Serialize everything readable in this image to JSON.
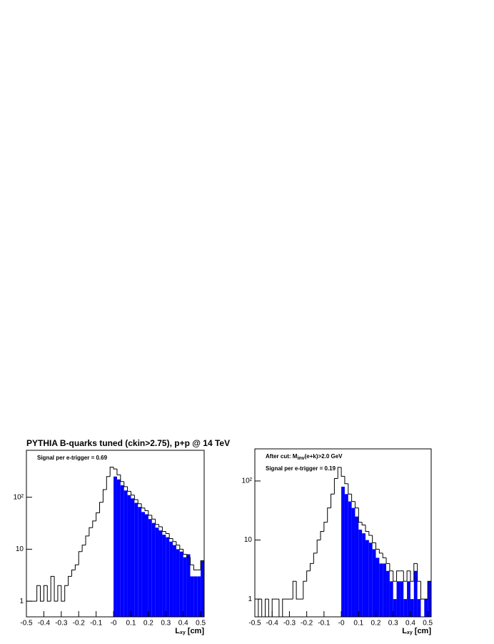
{
  "chart_data": [
    {
      "type": "histogram",
      "title": "PYTHIA B-quarks tuned (ckin>2.75), p+p @ 14 TeV",
      "annotations": [
        [
          "Signal per e-trigger = 0.69"
        ]
      ],
      "xlabel": [
        "L",
        "xy",
        " [cm]"
      ],
      "log_y": true,
      "xlim": [
        -0.5,
        0.52
      ],
      "ylim": [
        0.5,
        800
      ],
      "xticks": [
        -0.5,
        -0.4,
        -0.3,
        -0.2,
        -0.1,
        {
          "value": 0,
          "label": "-0"
        },
        0.1,
        0.2,
        0.3,
        0.4,
        0.5
      ],
      "yticks": [
        1,
        10,
        {
          "value": 100,
          "label": "10²"
        }
      ],
      "bins": [
        -0.5,
        -0.48,
        -0.46,
        -0.44,
        -0.42,
        -0.4,
        -0.38,
        -0.36,
        -0.34,
        -0.32,
        -0.3,
        -0.28,
        -0.26,
        -0.24,
        -0.22,
        -0.2,
        -0.18,
        -0.16,
        -0.14,
        -0.12,
        -0.1,
        -0.08,
        -0.06,
        -0.04,
        -0.02,
        0,
        0.02,
        0.04,
        0.06,
        0.08,
        0.1,
        0.12,
        0.14,
        0.16,
        0.18,
        0.2,
        0.22,
        0.24,
        0.26,
        0.28,
        0.3,
        0.32,
        0.34,
        0.36,
        0.38,
        0.4,
        0.42,
        0.44,
        0.46,
        0.48,
        0.5,
        0.52
      ],
      "series": [
        {
          "color": "#0000ff",
          "fill": true,
          "values": [
            0,
            0,
            0,
            0,
            0,
            0,
            0,
            0,
            0,
            0,
            0,
            0,
            0,
            0,
            0,
            0,
            0,
            0,
            0,
            0,
            0,
            0,
            0,
            0,
            0,
            250,
            220,
            170,
            135,
            110,
            95,
            78,
            65,
            52,
            47,
            38,
            32,
            26,
            23,
            19,
            17,
            14,
            12,
            10,
            9,
            7,
            8,
            3,
            3,
            3,
            6
          ]
        },
        {
          "color": "#000000",
          "fill": false,
          "values": [
            1,
            1,
            1,
            2,
            1,
            2,
            1,
            3,
            1,
            2,
            1,
            2,
            3,
            4,
            5,
            9,
            12,
            18,
            26,
            35,
            50,
            80,
            140,
            250,
            380,
            350,
            270,
            200,
            160,
            130,
            110,
            90,
            75,
            62,
            55,
            45,
            38,
            30,
            27,
            22,
            20,
            16,
            14,
            12,
            10,
            8,
            7,
            5,
            4,
            4,
            6
          ]
        }
      ]
    },
    {
      "type": "histogram",
      "annotations": [
        [
          "After cut: M",
          "inv",
          "(e+k)>2.0 GeV"
        ],
        [
          "Signal per e-trigger = 0.19"
        ]
      ],
      "xlabel": [
        "L",
        "xy",
        " [cm]"
      ],
      "log_y": true,
      "xlim": [
        -0.5,
        0.52
      ],
      "ylim": [
        0.5,
        350
      ],
      "xticks": [
        -0.5,
        -0.4,
        -0.3,
        -0.2,
        -0.1,
        {
          "value": 0,
          "label": "-0"
        },
        0.1,
        0.2,
        0.3,
        0.4,
        0.5
      ],
      "yticks": [
        1,
        10,
        {
          "value": 100,
          "label": "10²"
        }
      ],
      "bins": [
        -0.5,
        -0.48,
        -0.46,
        -0.44,
        -0.42,
        -0.4,
        -0.38,
        -0.36,
        -0.34,
        -0.32,
        -0.3,
        -0.28,
        -0.26,
        -0.24,
        -0.22,
        -0.2,
        -0.18,
        -0.16,
        -0.14,
        -0.12,
        -0.1,
        -0.08,
        -0.06,
        -0.04,
        -0.02,
        0,
        0.02,
        0.04,
        0.06,
        0.08,
        0.1,
        0.12,
        0.14,
        0.16,
        0.18,
        0.2,
        0.22,
        0.24,
        0.26,
        0.28,
        0.3,
        0.32,
        0.34,
        0.36,
        0.38,
        0.4,
        0.42,
        0.44,
        0.46,
        0.48,
        0.5,
        0.52
      ],
      "series": [
        {
          "color": "#0000ff",
          "fill": true,
          "values": [
            0,
            0,
            0,
            0,
            0,
            0,
            0,
            0,
            0,
            0,
            0,
            0,
            0,
            0,
            0,
            0,
            0,
            0,
            0,
            0,
            0,
            0,
            0,
            0,
            0,
            80,
            60,
            45,
            35,
            25,
            15,
            13,
            10,
            9,
            7,
            5,
            4,
            4,
            3,
            2,
            1,
            2,
            2,
            1,
            2,
            1,
            3,
            1,
            0,
            1,
            2
          ]
        },
        {
          "color": "#000000",
          "fill": false,
          "values": [
            0,
            1,
            0,
            1,
            0,
            1,
            1,
            0,
            1,
            1,
            1,
            2,
            1,
            1,
            2,
            3,
            4,
            6,
            10,
            14,
            20,
            35,
            60,
            110,
            170,
            120,
            90,
            60,
            45,
            35,
            20,
            18,
            14,
            12,
            9,
            7,
            6,
            5,
            4,
            3,
            2,
            3,
            3,
            2,
            3,
            2,
            4,
            2,
            1,
            1,
            2
          ]
        }
      ]
    }
  ]
}
